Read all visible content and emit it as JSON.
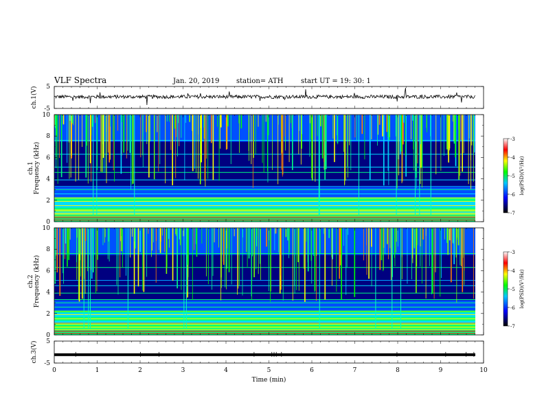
{
  "header": {
    "title": "VLF Spectra",
    "date": "Jan. 20, 2019",
    "station": "station= ATH",
    "start": "start UT =  19: 30: 1"
  },
  "chart_data": [
    {
      "type": "line",
      "ylabel": "ch.1(V)",
      "yticks": [
        "5",
        "-5"
      ],
      "ylim": [
        -5,
        5
      ],
      "xlim": [
        0,
        10
      ],
      "description_values": {
        "baseline_v": 0.3,
        "noise_amplitude_v": 0.8
      }
    },
    {
      "type": "heatmap",
      "ylabel": "ch.1\nFrequency (kHz)",
      "ylabel_lines": [
        "ch.1",
        "Frequency (kHz)"
      ],
      "yticks": [
        "0",
        "2",
        "4",
        "6",
        "8",
        "10"
      ],
      "ylim": [
        0,
        10
      ],
      "xlim": [
        0,
        9.8
      ],
      "colorbar": {
        "label": "log(PSD)(V²/Hz)",
        "ticks": [
          "-3",
          "-4",
          "-5",
          "-6",
          "-7"
        ],
        "range": [
          -7,
          -3
        ],
        "colors": [
          "#000000",
          "#0000ff",
          "#00c8ff",
          "#00ff00",
          "#ffff00",
          "#ff0000",
          "#ffffff"
        ]
      }
    },
    {
      "type": "heatmap",
      "ylabel": "ch.2\nFrequency (kHz)",
      "ylabel_lines": [
        "ch.2",
        "Frequency (kHz)"
      ],
      "yticks": [
        "0",
        "2",
        "4",
        "6",
        "8",
        "10"
      ],
      "ylim": [
        0,
        10
      ],
      "xlim": [
        0,
        9.8
      ],
      "colorbar": {
        "label": "log(PSD)(V²/Hz)",
        "ticks": [
          "-3",
          "-4",
          "-5",
          "-6",
          "-7"
        ],
        "range": [
          -7,
          -3
        ],
        "colors": [
          "#000000",
          "#0000ff",
          "#00c8ff",
          "#00ff00",
          "#ffff00",
          "#ff0000",
          "#ffffff"
        ]
      }
    },
    {
      "type": "line",
      "ylabel": "ch.3(V)",
      "yticks": [
        "5",
        "-5"
      ],
      "ylim": [
        -5,
        5
      ],
      "xlim": [
        0,
        10
      ],
      "description_values": {
        "level_v": -1.2
      }
    }
  ],
  "xaxis": {
    "label": "Time (min)",
    "ticks": [
      "0",
      "1",
      "2",
      "3",
      "4",
      "5",
      "6",
      "7",
      "8",
      "9",
      "10"
    ],
    "range": [
      0,
      10
    ]
  }
}
